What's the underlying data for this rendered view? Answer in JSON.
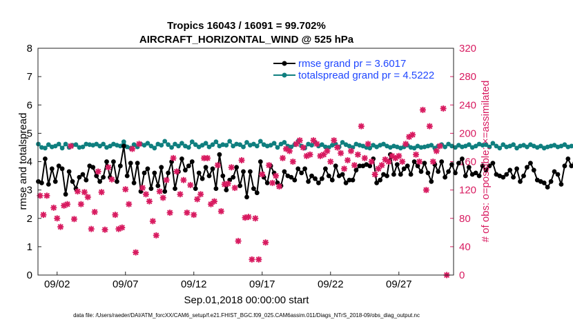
{
  "chart_data": {
    "type": "line",
    "title": "Tropics 16043 / 16091 = 99.702%",
    "subtitle": "AIRCRAFT_HORIZONTAL_WIND @ 525 hPa",
    "xlabel": "Sep.01,2018 00:00:00 start",
    "ylabel_left": "rmse and totalspread",
    "ylabel_right": "# of obs: o=possible; ×=assimilated",
    "footer": "data file: /Users/raeder/DAI/ATM_forcXX/CAM6_setup/f.e21.FHIST_BGC.f09_025.CAM6assim.011/Diags_NTrS_2018-09/obs_diag_output.nc",
    "xlim": [
      0.6,
      31.0
    ],
    "ylim_left": [
      0,
      8
    ],
    "ylim_right": [
      0,
      320
    ],
    "x_ticks": [
      {
        "x": 2,
        "label": "09/02"
      },
      {
        "x": 7,
        "label": "09/07"
      },
      {
        "x": 12,
        "label": "09/12"
      },
      {
        "x": 17,
        "label": "09/17"
      },
      {
        "x": 22,
        "label": "09/22"
      },
      {
        "x": 27,
        "label": "09/27"
      }
    ],
    "y_ticks_left": [
      "0",
      "1",
      "2",
      "3",
      "4",
      "5",
      "6",
      "7",
      "8"
    ],
    "y_ticks_right": [
      "0",
      "40",
      "80",
      "120",
      "160",
      "200",
      "240",
      "280",
      "320"
    ],
    "colors": {
      "rmse": "#000000",
      "spread": "#0f7f7f",
      "obs": "#d81b60",
      "legend_text": "#1f47ff"
    },
    "series": [
      {
        "name": "rmse grand pr = 3.6017",
        "axis": "left",
        "x_start": 0.625,
        "x_step": 0.25,
        "values": [
          3.3,
          3.25,
          4.1,
          3.2,
          3.75,
          3.3,
          3.85,
          3.75,
          2.85,
          3.65,
          3.3,
          3.05,
          3.45,
          3.55,
          3.35,
          3.85,
          3.8,
          3.5,
          3.3,
          3.45,
          4.0,
          3.45,
          4.0,
          3.3,
          3.85,
          4.55,
          3.5,
          3.95,
          3.25,
          3.95,
          2.95,
          3.6,
          3.75,
          3.05,
          3.6,
          3.15,
          3.8,
          2.95,
          3.6,
          4.0,
          3.05,
          3.65,
          4.1,
          3.7,
          3.85,
          4.0,
          3.05,
          3.6,
          3.4,
          3.8,
          3.5,
          3.75,
          3.05,
          4.25,
          3.5,
          3.0,
          3.35,
          3.45,
          3.8,
          3.15,
          3.65,
          2.75,
          3.65,
          3.05,
          2.9,
          4.0,
          3.45,
          3.25,
          3.85,
          3.6,
          3.25,
          3.15,
          3.65,
          3.5,
          3.45,
          3.35,
          3.75,
          3.6,
          3.75,
          3.3,
          3.5,
          3.4,
          3.25,
          3.4,
          3.75,
          3.5,
          3.35,
          3.85,
          3.5,
          3.55,
          3.25,
          3.35,
          3.35,
          3.7,
          3.85,
          3.85,
          3.9,
          3.85,
          4.1,
          3.25,
          3.35,
          3.55,
          3.5,
          4.25,
          3.55,
          3.9,
          3.55,
          3.75,
          3.85,
          3.55,
          4.0,
          3.85,
          3.65,
          3.95,
          3.6,
          3.3,
          3.9,
          3.65,
          4.0,
          3.45,
          3.65,
          3.9,
          3.6,
          3.95,
          4.1,
          3.5,
          3.8,
          3.55,
          3.6,
          3.5,
          3.85,
          3.7,
          3.85,
          3.95,
          3.55,
          3.5,
          3.45,
          3.55,
          3.7,
          3.45,
          3.75,
          3.3,
          3.5,
          3.8,
          3.95,
          3.7,
          3.35,
          3.3,
          3.25,
          3.1,
          3.3,
          3.65,
          3.55,
          3.2,
          3.85,
          4.1,
          3.85,
          3.95,
          3.8,
          3.4,
          3.45,
          3.85,
          3.4,
          3.85,
          4.1,
          3.85,
          3.35,
          3.55
        ]
      },
      {
        "name": "totalspread grand pr = 4.5222",
        "axis": "left",
        "x_start": 0.625,
        "x_step": 0.25,
        "values": [
          4.62,
          4.5,
          4.48,
          4.6,
          4.52,
          4.55,
          4.62,
          4.48,
          4.62,
          4.5,
          4.58,
          4.6,
          4.5,
          4.52,
          4.62,
          4.6,
          4.58,
          4.62,
          4.55,
          4.62,
          4.5,
          4.55,
          4.62,
          4.58,
          4.55,
          4.7,
          4.52,
          4.48,
          4.6,
          4.52,
          4.62,
          4.58,
          4.65,
          4.55,
          4.48,
          4.62,
          4.58,
          4.72,
          4.6,
          4.5,
          4.62,
          4.55,
          4.65,
          4.55,
          4.5,
          4.7,
          4.6,
          4.52,
          4.58,
          4.65,
          4.52,
          4.6,
          4.7,
          4.55,
          4.6,
          4.58,
          4.72,
          4.55,
          4.62,
          4.6,
          4.52,
          4.68,
          4.58,
          4.62,
          4.55,
          4.72,
          4.6,
          4.55,
          4.58,
          4.65,
          4.5,
          4.62,
          4.68,
          4.55,
          4.52,
          4.6,
          4.72,
          4.55,
          4.48,
          4.62,
          4.58,
          4.68,
          4.55,
          4.6,
          4.52,
          4.5,
          4.58,
          4.62,
          4.52,
          4.68,
          4.6,
          4.55,
          4.5,
          4.62,
          4.58,
          4.55,
          4.5,
          4.48,
          4.58,
          4.52,
          4.58,
          4.62,
          4.55,
          4.5,
          4.55,
          4.52,
          4.48,
          4.52,
          4.58,
          4.5,
          4.48,
          4.55,
          4.5,
          4.52,
          4.55,
          4.58,
          4.48,
          4.55,
          4.6,
          4.52,
          4.62,
          4.55,
          4.5,
          4.58,
          4.52,
          4.55,
          4.6,
          4.5,
          4.55,
          4.62,
          4.58,
          4.6,
          4.52,
          4.65,
          4.55,
          4.48,
          4.6,
          4.52,
          4.55,
          4.6,
          4.48,
          4.55,
          4.58,
          4.52,
          4.6,
          4.55,
          4.5,
          4.55,
          4.48,
          4.52,
          4.55,
          4.58,
          4.52,
          4.55,
          4.6,
          4.52,
          4.55,
          4.58,
          4.55,
          4.52,
          4.62,
          4.58,
          4.55,
          4.5,
          4.6,
          4.52,
          4.48,
          4.55,
          4.52,
          4.58
        ]
      },
      {
        "name": "assimilated obs count",
        "axis": "right",
        "points": [
          [
            0.75,
            112
          ],
          [
            1.0,
            85
          ],
          [
            1.25,
            112
          ],
          [
            1.75,
            95
          ],
          [
            2.0,
            80
          ],
          [
            2.25,
            68
          ],
          [
            2.5,
            98
          ],
          [
            2.75,
            100
          ],
          [
            3.0,
            182
          ],
          [
            3.25,
            79
          ],
          [
            3.5,
            118
          ],
          [
            3.75,
            100
          ],
          [
            4.0,
            117
          ],
          [
            4.25,
            110
          ],
          [
            4.5,
            65
          ],
          [
            4.75,
            89
          ],
          [
            5.0,
            146
          ],
          [
            5.25,
            117
          ],
          [
            5.5,
            64
          ],
          [
            5.75,
            152
          ],
          [
            6.0,
            135
          ],
          [
            6.25,
            85
          ],
          [
            6.5,
            65
          ],
          [
            6.75,
            67
          ],
          [
            7.0,
            121
          ],
          [
            7.25,
            100
          ],
          [
            7.5,
            178
          ],
          [
            7.75,
            32
          ],
          [
            8.0,
            185
          ],
          [
            8.25,
            123
          ],
          [
            8.5,
            114
          ],
          [
            8.75,
            104
          ],
          [
            9.0,
            76
          ],
          [
            9.25,
            56
          ],
          [
            9.5,
            118
          ],
          [
            9.75,
            109
          ],
          [
            10.0,
            134
          ],
          [
            10.25,
            88
          ],
          [
            10.5,
            165
          ],
          [
            10.75,
            146
          ],
          [
            11.0,
            114
          ],
          [
            11.25,
            134
          ],
          [
            11.5,
            88
          ],
          [
            11.75,
            127
          ],
          [
            12.0,
            85
          ],
          [
            12.25,
            107
          ],
          [
            12.5,
            114
          ],
          [
            12.75,
            165
          ],
          [
            13.0,
            165
          ],
          [
            13.25,
            100
          ],
          [
            13.5,
            104
          ],
          [
            13.75,
            155
          ],
          [
            14.0,
            90
          ],
          [
            14.25,
            128
          ],
          [
            14.5,
            129
          ],
          [
            14.75,
            152
          ],
          [
            15.0,
            123
          ],
          [
            15.25,
            48
          ],
          [
            15.5,
            162
          ],
          [
            15.75,
            81
          ],
          [
            16.0,
            82
          ],
          [
            16.25,
            22
          ],
          [
            16.5,
            80
          ],
          [
            16.75,
            22
          ],
          [
            17.0,
            142
          ],
          [
            17.25,
            46
          ],
          [
            17.5,
            155
          ],
          [
            17.75,
            130
          ],
          [
            18.0,
            140
          ],
          [
            18.25,
            125
          ],
          [
            18.5,
            165
          ],
          [
            18.75,
            178
          ],
          [
            19.0,
            175
          ],
          [
            19.25,
            160
          ],
          [
            19.5,
            185
          ],
          [
            19.75,
            190
          ],
          [
            20.0,
            180
          ],
          [
            20.25,
            168
          ],
          [
            20.5,
            170
          ],
          [
            20.75,
            190
          ],
          [
            21.0,
            185
          ],
          [
            21.25,
            168
          ],
          [
            21.5,
            170
          ],
          [
            21.75,
            175
          ],
          [
            22.0,
            160
          ],
          [
            22.25,
            190
          ],
          [
            22.5,
            180
          ],
          [
            22.75,
            172
          ],
          [
            23.0,
            150
          ],
          [
            23.25,
            162
          ],
          [
            23.5,
            175
          ],
          [
            23.75,
            155
          ],
          [
            24.0,
            170
          ],
          [
            24.25,
            210
          ],
          [
            24.5,
            165
          ],
          [
            24.75,
            185
          ],
          [
            25.0,
            160
          ],
          [
            25.25,
            142
          ],
          [
            25.5,
            150
          ],
          [
            25.75,
            155
          ],
          [
            26.0,
            163
          ],
          [
            26.25,
            160
          ],
          [
            26.5,
            168
          ],
          [
            26.75,
            165
          ],
          [
            27.0,
            168
          ],
          [
            27.25,
            160
          ],
          [
            27.5,
            185
          ],
          [
            27.75,
            195
          ],
          [
            28.0,
            198
          ],
          [
            28.25,
            170
          ],
          [
            28.5,
            160
          ],
          [
            28.75,
            233
          ],
          [
            29.0,
            120
          ],
          [
            29.25,
            210
          ],
          [
            29.5,
            160
          ],
          [
            29.75,
            175
          ],
          [
            30.0,
            182
          ],
          [
            30.25,
            235
          ],
          [
            30.5,
            0
          ]
        ]
      }
    ]
  }
}
